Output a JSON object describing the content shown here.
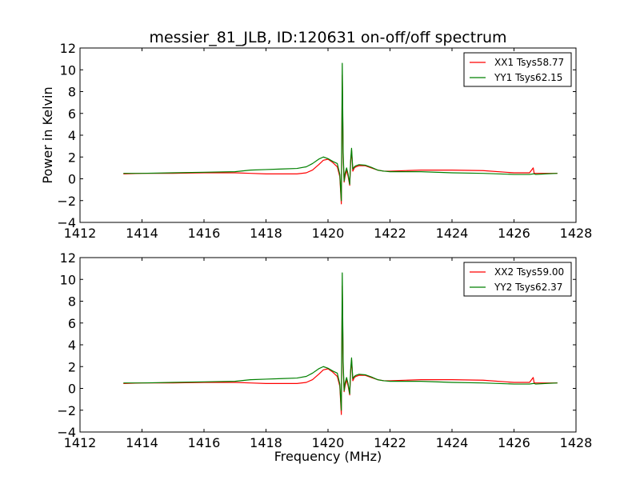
{
  "chart_data": [
    {
      "type": "line",
      "title": "messier_81_JLB, ID:120631 on-off/off spectrum",
      "xlabel": "",
      "ylabel": "Power in Kelvin",
      "xlim": [
        1412,
        1428
      ],
      "ylim": [
        -4,
        12
      ],
      "xticks": [
        "1412",
        "1414",
        "1416",
        "1418",
        "1420",
        "1422",
        "1424",
        "1426",
        "1428"
      ],
      "yticks": [
        "−4",
        "−2",
        "0",
        "2",
        "4",
        "6",
        "8",
        "10",
        "12"
      ],
      "grid": false,
      "legend_position": "top-right",
      "series": [
        {
          "name": "XX1 Tsys58.77",
          "color": "#ff0000",
          "x": [
            1413.4,
            1414.0,
            1415.0,
            1416.0,
            1417.0,
            1417.5,
            1418.0,
            1418.5,
            1419.0,
            1419.3,
            1419.5,
            1419.7,
            1419.85,
            1420.0,
            1420.15,
            1420.3,
            1420.38,
            1420.43,
            1420.46,
            1420.49,
            1420.52,
            1420.55,
            1420.6,
            1420.65,
            1420.7,
            1420.73,
            1420.76,
            1420.8,
            1420.85,
            1420.9,
            1421.0,
            1421.2,
            1421.4,
            1421.6,
            1421.8,
            1422.0,
            1423.0,
            1424.0,
            1425.0,
            1426.0,
            1426.5,
            1426.62,
            1426.65,
            1426.7,
            1427.0,
            1427.4
          ],
          "y": [
            0.45,
            0.5,
            0.5,
            0.55,
            0.55,
            0.5,
            0.45,
            0.45,
            0.45,
            0.55,
            0.8,
            1.3,
            1.7,
            1.8,
            1.5,
            1.1,
            0.2,
            -2.3,
            9.5,
            2.0,
            -0.3,
            0.2,
            0.8,
            0.2,
            -0.6,
            1.5,
            2.6,
            0.7,
            1.0,
            1.1,
            1.2,
            1.2,
            1.0,
            0.8,
            0.7,
            0.7,
            0.8,
            0.8,
            0.75,
            0.55,
            0.55,
            1.0,
            0.5,
            0.5,
            0.5,
            0.5
          ]
        },
        {
          "name": "YY1 Tsys62.15",
          "color": "#008000",
          "x": [
            1413.4,
            1414.0,
            1415.0,
            1416.0,
            1417.0,
            1417.5,
            1418.0,
            1418.5,
            1419.0,
            1419.3,
            1419.5,
            1419.7,
            1419.85,
            1420.0,
            1420.15,
            1420.3,
            1420.38,
            1420.43,
            1420.46,
            1420.49,
            1420.52,
            1420.55,
            1420.6,
            1420.65,
            1420.7,
            1420.73,
            1420.76,
            1420.8,
            1420.85,
            1420.9,
            1421.0,
            1421.2,
            1421.4,
            1421.6,
            1421.8,
            1422.0,
            1423.0,
            1424.0,
            1425.0,
            1426.0,
            1426.5,
            1426.62,
            1426.65,
            1426.7,
            1427.0,
            1427.4
          ],
          "y": [
            0.5,
            0.5,
            0.55,
            0.6,
            0.65,
            0.8,
            0.85,
            0.9,
            0.95,
            1.1,
            1.4,
            1.8,
            2.0,
            1.85,
            1.6,
            1.4,
            0.4,
            -2.0,
            10.6,
            2.4,
            -0.2,
            0.5,
            1.0,
            0.4,
            -0.5,
            1.7,
            2.8,
            0.9,
            1.1,
            1.2,
            1.3,
            1.25,
            1.05,
            0.8,
            0.7,
            0.65,
            0.65,
            0.55,
            0.5,
            0.4,
            0.4,
            0.45,
            0.45,
            0.4,
            0.45,
            0.5
          ]
        }
      ]
    },
    {
      "type": "line",
      "title": "",
      "xlabel": "Frequency (MHz)",
      "ylabel": "",
      "xlim": [
        1412,
        1428
      ],
      "ylim": [
        -4,
        12
      ],
      "xticks": [
        "1412",
        "1414",
        "1416",
        "1418",
        "1420",
        "1422",
        "1424",
        "1426",
        "1428"
      ],
      "yticks": [
        "−4",
        "−2",
        "0",
        "2",
        "4",
        "6",
        "8",
        "10",
        "12"
      ],
      "grid": false,
      "legend_position": "top-right",
      "series": [
        {
          "name": "XX2 Tsys59.00",
          "color": "#ff0000",
          "x": [
            1413.4,
            1414.0,
            1415.0,
            1416.0,
            1417.0,
            1417.5,
            1418.0,
            1418.5,
            1419.0,
            1419.3,
            1419.5,
            1419.7,
            1419.85,
            1420.0,
            1420.15,
            1420.3,
            1420.38,
            1420.43,
            1420.46,
            1420.49,
            1420.52,
            1420.55,
            1420.6,
            1420.65,
            1420.7,
            1420.73,
            1420.76,
            1420.8,
            1420.85,
            1420.9,
            1421.0,
            1421.2,
            1421.4,
            1421.6,
            1421.8,
            1422.0,
            1423.0,
            1424.0,
            1425.0,
            1426.0,
            1426.5,
            1426.62,
            1426.65,
            1426.7,
            1427.0,
            1427.4
          ],
          "y": [
            0.45,
            0.5,
            0.5,
            0.55,
            0.55,
            0.5,
            0.45,
            0.45,
            0.45,
            0.55,
            0.8,
            1.3,
            1.7,
            1.8,
            1.5,
            1.1,
            0.2,
            -2.4,
            9.4,
            2.0,
            -0.3,
            0.2,
            0.8,
            0.2,
            -0.6,
            1.5,
            2.6,
            0.7,
            1.0,
            1.1,
            1.2,
            1.2,
            1.0,
            0.8,
            0.7,
            0.7,
            0.8,
            0.8,
            0.75,
            0.55,
            0.55,
            1.0,
            0.5,
            0.5,
            0.5,
            0.5
          ]
        },
        {
          "name": "YY2 Tsys62.37",
          "color": "#008000",
          "x": [
            1413.4,
            1414.0,
            1415.0,
            1416.0,
            1417.0,
            1417.5,
            1418.0,
            1418.5,
            1419.0,
            1419.3,
            1419.5,
            1419.7,
            1419.85,
            1420.0,
            1420.15,
            1420.3,
            1420.38,
            1420.43,
            1420.46,
            1420.49,
            1420.52,
            1420.55,
            1420.6,
            1420.65,
            1420.7,
            1420.73,
            1420.76,
            1420.8,
            1420.85,
            1420.9,
            1421.0,
            1421.2,
            1421.4,
            1421.6,
            1421.8,
            1422.0,
            1423.0,
            1424.0,
            1425.0,
            1426.0,
            1426.5,
            1426.62,
            1426.65,
            1426.7,
            1427.0,
            1427.4
          ],
          "y": [
            0.5,
            0.5,
            0.55,
            0.6,
            0.65,
            0.8,
            0.85,
            0.9,
            0.95,
            1.1,
            1.4,
            1.8,
            2.0,
            1.85,
            1.6,
            1.4,
            0.4,
            -2.0,
            10.6,
            2.4,
            -0.2,
            0.5,
            1.0,
            0.4,
            -0.5,
            1.7,
            2.8,
            0.9,
            1.1,
            1.2,
            1.3,
            1.25,
            1.05,
            0.8,
            0.7,
            0.65,
            0.65,
            0.55,
            0.5,
            0.4,
            0.4,
            0.45,
            0.45,
            0.4,
            0.45,
            0.5
          ]
        }
      ]
    }
  ]
}
